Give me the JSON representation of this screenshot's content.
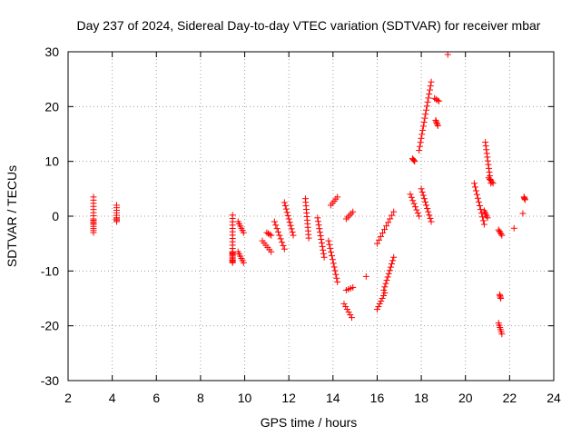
{
  "chart_data": {
    "type": "scatter",
    "title": "Day 237 of 2024, Sidereal Day-to-day VTEC variation (SDTVAR) for receiver mbar",
    "xlabel": "GPS time / hours",
    "ylabel": "SDTVAR / TECUs",
    "xlim": [
      2,
      24
    ],
    "ylim": [
      -30,
      30
    ],
    "xticks": [
      2,
      4,
      6,
      8,
      10,
      12,
      14,
      16,
      18,
      20,
      22,
      24
    ],
    "yticks": [
      -30,
      -20,
      -10,
      0,
      10,
      20,
      30
    ],
    "grid": true,
    "marker": "+",
    "color": "#ff0000",
    "series": [
      {
        "name": "SDTVAR",
        "segments": [
          {
            "x0": 3.15,
            "x1": 3.15,
            "y": [
              3.5,
              -0.5,
              -1.5,
              -3.0
            ]
          },
          {
            "x0": 4.2,
            "x1": 4.2,
            "y": [
              2.0,
              -0.3,
              -1.0
            ]
          },
          {
            "x0": 9.45,
            "x1": 9.45,
            "y": [
              0.2,
              -6.5,
              -7.0,
              -8.0,
              -8.5
            ]
          },
          {
            "x0": 9.7,
            "x1": 9.95,
            "y": [
              -1.0,
              -3.0
            ]
          },
          {
            "x0": 9.7,
            "x1": 9.95,
            "y": [
              -6.5,
              -8.5
            ]
          },
          {
            "x0": 10.8,
            "x1": 11.2,
            "y": [
              -4.5,
              -6.5
            ]
          },
          {
            "x0": 11.0,
            "x1": 11.2,
            "y": [
              -3.0,
              -3.5
            ]
          },
          {
            "x0": 11.35,
            "x1": 11.8,
            "y": [
              -1.0,
              -6.0
            ]
          },
          {
            "x0": 11.8,
            "x1": 12.2,
            "y": [
              2.5,
              -3.5
            ]
          },
          {
            "x0": 12.75,
            "x1": 12.9,
            "y": [
              3.2,
              -4.0
            ]
          },
          {
            "x0": 13.3,
            "x1": 13.6,
            "y": [
              -0.3,
              -7.5
            ]
          },
          {
            "x0": 13.9,
            "x1": 14.2,
            "y": [
              2.0,
              3.5
            ]
          },
          {
            "x0": 13.8,
            "x1": 14.2,
            "y": [
              -4.5,
              -12.0
            ]
          },
          {
            "x0": 14.5,
            "x1": 14.85,
            "y": [
              -16.0,
              -18.5
            ]
          },
          {
            "x0": 14.6,
            "x1": 14.9,
            "y": [
              -13.5,
              -13.0
            ]
          },
          {
            "x0": 14.6,
            "x1": 14.9,
            "y": [
              -0.5,
              0.8
            ]
          },
          {
            "x0": 15.5,
            "x1": 15.5,
            "y": [
              -11.0
            ]
          },
          {
            "x0": 16.0,
            "x1": 16.35,
            "y": [
              -17.0,
              -14.0
            ]
          },
          {
            "x0": 16.3,
            "x1": 16.75,
            "y": [
              -13.5,
              -7.5
            ]
          },
          {
            "x0": 16.0,
            "x1": 16.75,
            "y": [
              -5.0,
              0.8
            ]
          },
          {
            "x0": 17.5,
            "x1": 17.9,
            "y": [
              4.0,
              0.0
            ]
          },
          {
            "x0": 17.6,
            "x1": 17.7,
            "y": [
              10.5,
              10.0
            ]
          },
          {
            "x0": 17.9,
            "x1": 18.45,
            "y": [
              12.0,
              24.5
            ]
          },
          {
            "x0": 18.0,
            "x1": 18.45,
            "y": [
              5.0,
              -1.0
            ]
          },
          {
            "x0": 18.6,
            "x1": 18.8,
            "y": [
              21.5,
              21.0
            ]
          },
          {
            "x0": 18.65,
            "x1": 18.75,
            "y": [
              17.5,
              16.5
            ]
          },
          {
            "x0": 19.2,
            "x1": 19.2,
            "y": [
              29.5
            ]
          },
          {
            "x0": 20.4,
            "x1": 20.85,
            "y": [
              6.0,
              -1.5
            ]
          },
          {
            "x0": 20.9,
            "x1": 21.15,
            "y": [
              13.5,
              6.0
            ]
          },
          {
            "x0": 20.85,
            "x1": 21.0,
            "y": [
              1.0,
              -0.3
            ]
          },
          {
            "x0": 21.05,
            "x1": 21.25,
            "y": [
              7.0,
              6.0
            ]
          },
          {
            "x0": 21.5,
            "x1": 21.65,
            "y": [
              -2.5,
              -3.5
            ]
          },
          {
            "x0": 21.55,
            "x1": 21.6,
            "y": [
              -14.3,
              -15.0
            ]
          },
          {
            "x0": 21.5,
            "x1": 21.65,
            "y": [
              -19.5,
              -21.5
            ]
          },
          {
            "x0": 22.2,
            "x1": 22.2,
            "y": [
              -2.2
            ]
          },
          {
            "x0": 22.65,
            "x1": 22.7,
            "y": [
              3.5,
              3.0
            ]
          },
          {
            "x0": 22.6,
            "x1": 22.6,
            "y": [
              0.5
            ]
          }
        ]
      }
    ]
  }
}
